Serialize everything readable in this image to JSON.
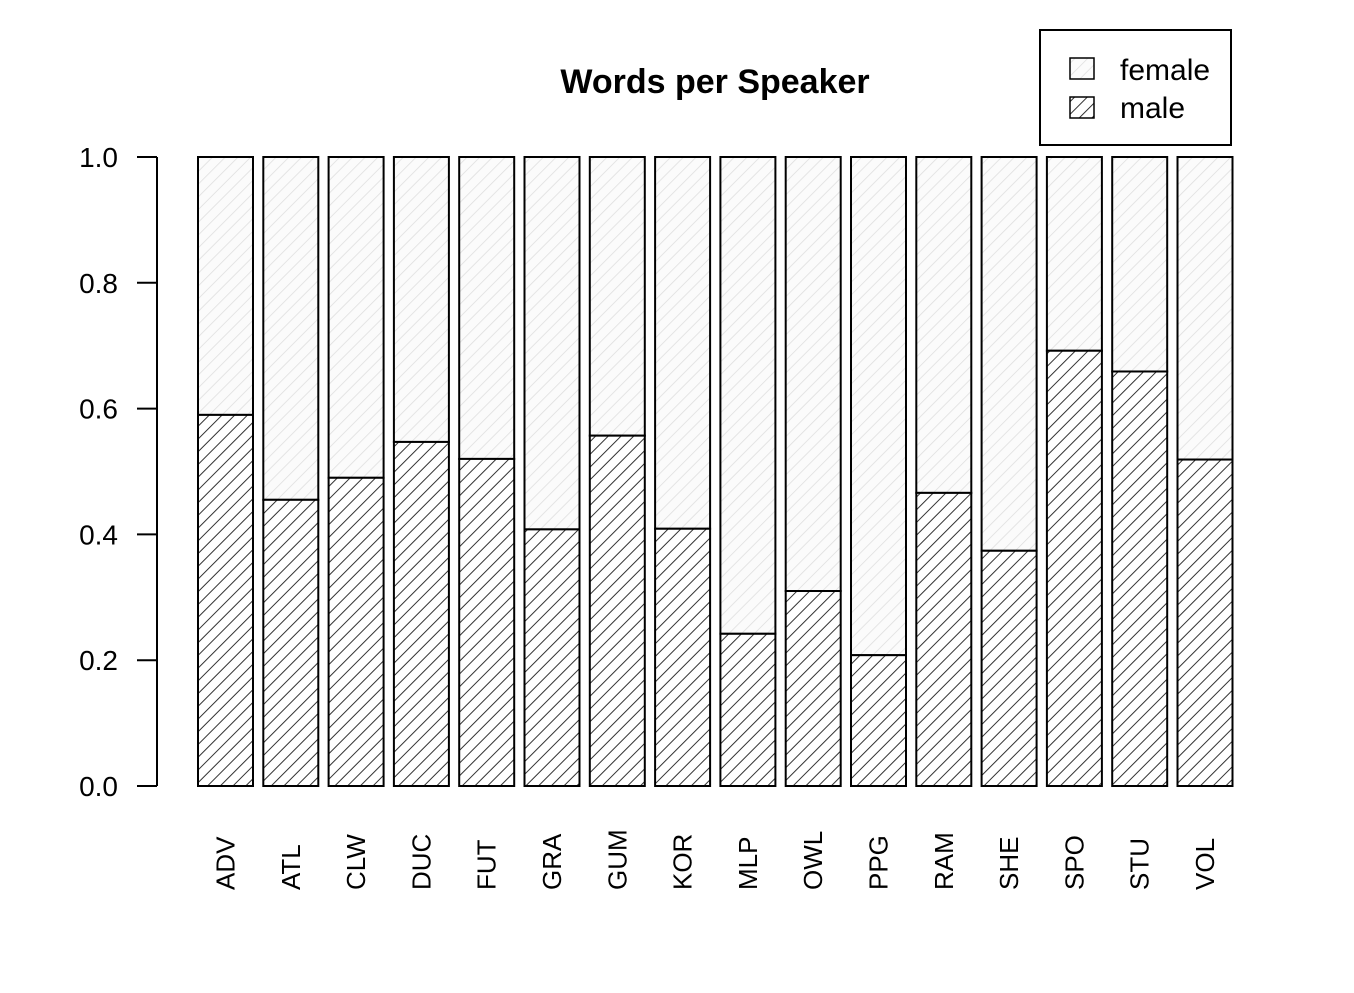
{
  "chart_data": {
    "type": "bar",
    "stacked": true,
    "title": "Words per Speaker",
    "xlabel": "",
    "ylabel": "",
    "ylim": [
      0,
      1
    ],
    "yticks": [
      "0.0",
      "0.2",
      "0.4",
      "0.6",
      "0.8",
      "1.0"
    ],
    "categories": [
      "ADV",
      "ATL",
      "CLW",
      "DUC",
      "FUT",
      "GRA",
      "GUM",
      "KOR",
      "MLP",
      "OWL",
      "PPG",
      "RAM",
      "SHE",
      "SPO",
      "STU",
      "VOL"
    ],
    "series": [
      {
        "name": "male",
        "pattern": "dense-hatch",
        "values": [
          0.59,
          0.455,
          0.49,
          0.547,
          0.52,
          0.408,
          0.557,
          0.409,
          0.242,
          0.31,
          0.208,
          0.466,
          0.374,
          0.692,
          0.659,
          0.519
        ]
      },
      {
        "name": "female",
        "pattern": "light-hatch",
        "values": [
          0.41,
          0.545,
          0.51,
          0.453,
          0.48,
          0.592,
          0.443,
          0.591,
          0.758,
          0.69,
          0.792,
          0.534,
          0.626,
          0.308,
          0.341,
          0.481
        ]
      }
    ],
    "legend": {
      "placement": "top-right",
      "entries": [
        "female",
        "male"
      ]
    },
    "grid": false
  }
}
